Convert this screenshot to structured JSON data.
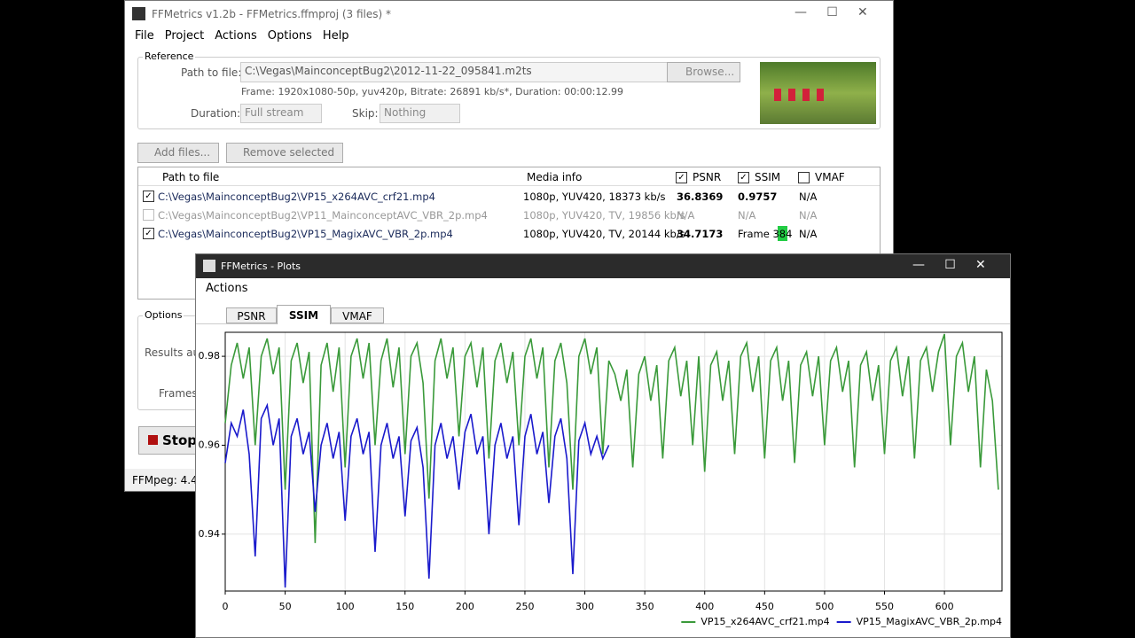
{
  "window": {
    "title": "FFMetrics v1.2b - FFMetrics.ffmproj (3 files) *",
    "menu": [
      "File",
      "Project",
      "Actions",
      "Options",
      "Help"
    ],
    "reference": {
      "group": "Reference",
      "path_label": "Path to file:",
      "path": "C:\\Vegas\\MainconceptBug2\\2012-11-22_095841.m2ts",
      "browse": "Browse...",
      "info": "Frame: 1920x1080-50p, yuv420p, Bitrate: 26891 kb/s*, Duration: 00:00:12.99",
      "duration_label": "Duration:",
      "duration": "Full stream",
      "skip_label": "Skip:",
      "skip": "Nothing"
    },
    "add_files": "Add files...",
    "remove_selected": "Remove selected",
    "table": {
      "headers": [
        "Path to file",
        "Media info",
        "PSNR",
        "SSIM",
        "VMAF"
      ],
      "rows": [
        [
          "C:\\Vegas\\MainconceptBug2\\VP15_x264AVC_crf21.mp4",
          "1080p, YUV420, 18373 kb/s",
          "36.8369",
          "0.9757",
          "N/A"
        ],
        [
          "C:\\Vegas\\MainconceptBug2\\VP11_MainconceptAVC_VBR_2p.mp4",
          "1080p, YUV420, TV, 19856 kb/s",
          "N/A",
          "N/A",
          "N/A"
        ],
        [
          "C:\\Vegas\\MainconceptBug2\\VP15_MagixAVC_VBR_2p.mp4",
          "1080p, YUV420, TV, 20144 kb/s",
          "34.7173",
          "Frame 384",
          "N/A"
        ]
      ]
    },
    "options": {
      "group": "Options",
      "results": "Results au",
      "frames": "Frames"
    },
    "stop": "Stop",
    "status": "FFMpeg: 4.4"
  },
  "plots_window": {
    "title": "FFMetrics - Plots",
    "menu": [
      "Actions"
    ],
    "tabs": [
      "PSNR",
      "SSIM",
      "VMAF"
    ]
  },
  "chart_data": {
    "type": "line",
    "xlim": [
      0,
      648
    ],
    "ylim": [
      0.9272,
      0.9854
    ],
    "xticks": [
      0,
      50,
      100,
      150,
      200,
      250,
      300,
      350,
      400,
      450,
      500,
      550,
      600
    ],
    "yticks": [
      0.94,
      0.96,
      0.98
    ],
    "grid": true,
    "legend": "bottom-right",
    "x": [
      0,
      5,
      10,
      15,
      20,
      25,
      30,
      35,
      40,
      45,
      50,
      55,
      60,
      65,
      70,
      75,
      80,
      85,
      90,
      95,
      100,
      105,
      110,
      115,
      120,
      125,
      130,
      135,
      140,
      145,
      150,
      155,
      160,
      165,
      170,
      175,
      180,
      185,
      190,
      195,
      200,
      205,
      210,
      215,
      220,
      225,
      230,
      235,
      240,
      245,
      250,
      255,
      260,
      265,
      270,
      275,
      280,
      285,
      290,
      295,
      300,
      305,
      310,
      315,
      320,
      325,
      330,
      335,
      340,
      345,
      350,
      355,
      360,
      365,
      370,
      375,
      380,
      385,
      390,
      395,
      400,
      405,
      410,
      415,
      420,
      425,
      430,
      435,
      440,
      445,
      450,
      455,
      460,
      465,
      470,
      475,
      480,
      485,
      490,
      495,
      500,
      505,
      510,
      515,
      520,
      525,
      530,
      535,
      540,
      545,
      550,
      555,
      560,
      565,
      570,
      575,
      580,
      585,
      590,
      595,
      600,
      605,
      610,
      615,
      620,
      625,
      630,
      635,
      640,
      645
    ],
    "series": [
      {
        "name": "VP15_x264AVC_crf21.mp4",
        "color": "#3a9a3a",
        "values": [
          0.965,
          0.978,
          0.983,
          0.975,
          0.982,
          0.96,
          0.98,
          0.984,
          0.976,
          0.982,
          0.95,
          0.979,
          0.983,
          0.974,
          0.981,
          0.938,
          0.978,
          0.983,
          0.972,
          0.982,
          0.955,
          0.98,
          0.984,
          0.975,
          0.983,
          0.96,
          0.979,
          0.984,
          0.973,
          0.982,
          0.958,
          0.98,
          0.983,
          0.974,
          0.948,
          0.979,
          0.984,
          0.975,
          0.982,
          0.962,
          0.98,
          0.983,
          0.973,
          0.982,
          0.957,
          0.979,
          0.983,
          0.974,
          0.981,
          0.96,
          0.98,
          0.984,
          0.975,
          0.982,
          0.955,
          0.979,
          0.983,
          0.974,
          0.95,
          0.98,
          0.984,
          0.976,
          0.982,
          0.958,
          0.979,
          0.976,
          0.97,
          0.977,
          0.955,
          0.976,
          0.98,
          0.97,
          0.978,
          0.957,
          0.979,
          0.982,
          0.971,
          0.979,
          0.96,
          0.98,
          0.954,
          0.978,
          0.981,
          0.97,
          0.979,
          0.958,
          0.98,
          0.983,
          0.972,
          0.98,
          0.957,
          0.979,
          0.982,
          0.97,
          0.979,
          0.956,
          0.978,
          0.981,
          0.971,
          0.98,
          0.96,
          0.979,
          0.982,
          0.972,
          0.979,
          0.955,
          0.978,
          0.981,
          0.97,
          0.978,
          0.958,
          0.979,
          0.982,
          0.971,
          0.98,
          0.957,
          0.979,
          0.982,
          0.972,
          0.981,
          0.985,
          0.96,
          0.98,
          0.983,
          0.972,
          0.98,
          0.955,
          0.977,
          0.97,
          0.95
        ]
      },
      {
        "name": "VP15_MagixAVC_VBR_2p.mp4",
        "color": "#1a1acc",
        "values": [
          0.956,
          0.965,
          0.962,
          0.968,
          0.958,
          0.935,
          0.966,
          0.969,
          0.96,
          0.966,
          0.928,
          0.962,
          0.966,
          0.958,
          0.963,
          0.945,
          0.96,
          0.965,
          0.957,
          0.963,
          0.943,
          0.962,
          0.966,
          0.958,
          0.963,
          0.936,
          0.96,
          0.965,
          0.957,
          0.962,
          0.944,
          0.961,
          0.964,
          0.955,
          0.93,
          0.96,
          0.965,
          0.957,
          0.962,
          0.95,
          0.963,
          0.967,
          0.958,
          0.962,
          0.94,
          0.96,
          0.965,
          0.957,
          0.962,
          0.942,
          0.962,
          0.967,
          0.958,
          0.963,
          0.947,
          0.962,
          0.966,
          0.957,
          0.931,
          0.961,
          0.965,
          0.958,
          0.962,
          0.957,
          0.96,
          null,
          null,
          null,
          null,
          null,
          null,
          null,
          null,
          null,
          null,
          null,
          null,
          null,
          null,
          null,
          null,
          null,
          null,
          null,
          null,
          null,
          null,
          null,
          null,
          null,
          null,
          null,
          null,
          null,
          null,
          null,
          null,
          null,
          null,
          null,
          null,
          null,
          null,
          null,
          null,
          null,
          null,
          null,
          null,
          null,
          null,
          null,
          null,
          null,
          null,
          null,
          null,
          null,
          null,
          null,
          null,
          null,
          null,
          null,
          null,
          null,
          null,
          null,
          null,
          null
        ]
      }
    ]
  }
}
